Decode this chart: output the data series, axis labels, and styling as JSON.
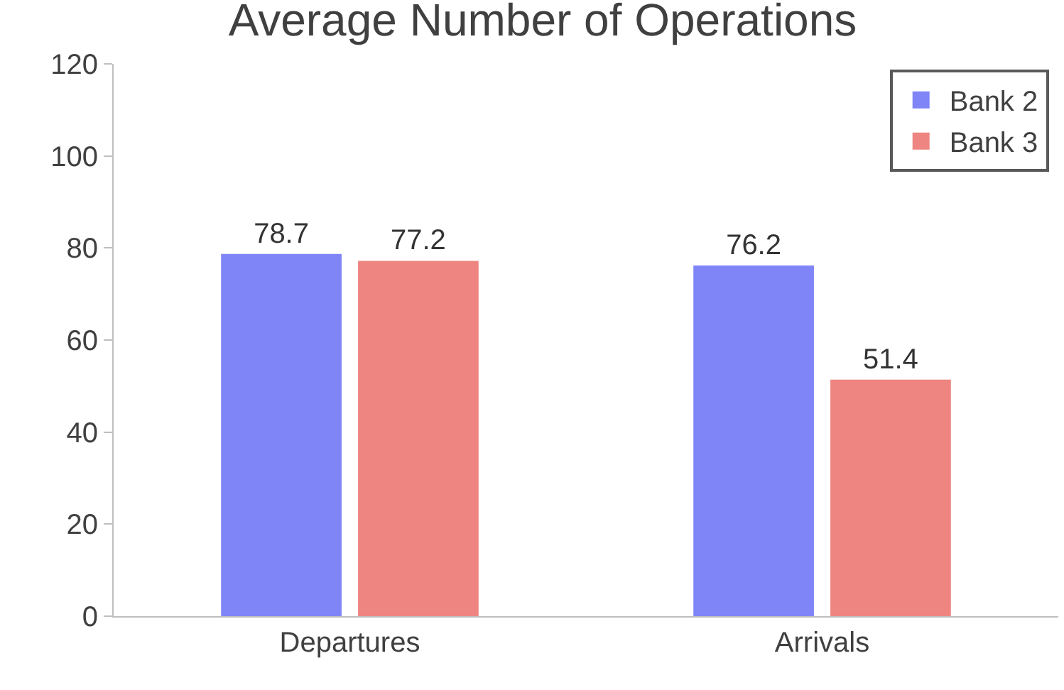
{
  "chart_data": {
    "type": "bar",
    "title": "Average Number of Operations",
    "categories": [
      "Departures",
      "Arrivals"
    ],
    "series": [
      {
        "name": "Bank 2",
        "color": "#7f84f7",
        "values": [
          78.7,
          76.2
        ]
      },
      {
        "name": "Bank 3",
        "color": "#ee8580",
        "values": [
          77.2,
          51.4
        ]
      }
    ],
    "ylim": [
      0,
      120
    ],
    "yticks": [
      0,
      20,
      40,
      60,
      80,
      100,
      120
    ],
    "grid": false,
    "legend": "top right",
    "data_labels": true
  }
}
